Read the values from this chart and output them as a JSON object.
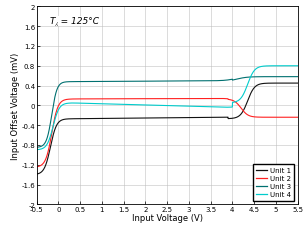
{
  "title": "T⁁ = 125°C",
  "xlabel": "Input Voltage (V)",
  "ylabel": "Input Offset Voltage (mV)",
  "xlim": [
    -0.5,
    5.5
  ],
  "ylim": [
    -2.0,
    2.0
  ],
  "xticks": [
    -0.5,
    0,
    0.5,
    1.0,
    1.5,
    2.0,
    2.5,
    3.0,
    3.5,
    4.0,
    4.5,
    5.0,
    5.5
  ],
  "yticks": [
    -2.0,
    -1.6,
    -1.2,
    -0.8,
    -0.4,
    0,
    0.4,
    0.8,
    1.2,
    1.6,
    2.0
  ],
  "legend_labels": [
    "Unit 1",
    "Unit 2",
    "Unit 3",
    "Unit 4"
  ],
  "line_colors": [
    "#111111",
    "#ff2020",
    "#007070",
    "#00cccc"
  ],
  "background_color": "#ffffff",
  "grid_color": "#bbbbbb",
  "annotation": "T⁁ = 125°C"
}
